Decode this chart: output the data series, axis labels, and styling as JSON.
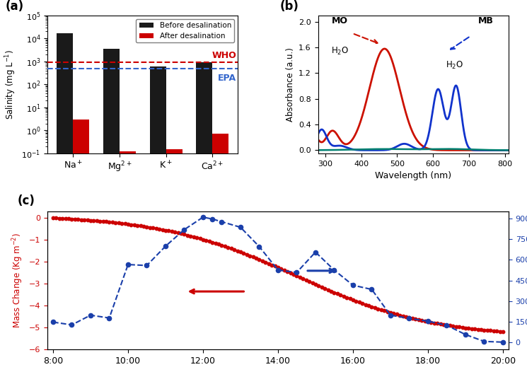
{
  "panel_a": {
    "categories": [
      "Na$^+$",
      "Mg$^{2+}$",
      "K$^+$",
      "Ca$^{2+}$"
    ],
    "before": [
      17000,
      3500,
      600,
      900
    ],
    "after": [
      3.0,
      0.12,
      0.15,
      0.7
    ],
    "who_level": 900,
    "epa_level": 500,
    "ylabel": "Salinity (mg L$^{-1}$)",
    "ylim_bottom": 0.1,
    "ylim_top": 100000.0,
    "who_label": "WHO",
    "epa_label": "EPA",
    "before_color": "#1a1a1a",
    "after_color": "#cc0000",
    "who_color": "#cc0000",
    "epa_color": "#3366cc"
  },
  "panel_b": {
    "ylabel": "Absorbance (a.u.)",
    "xlabel": "Wavelength (nm)",
    "xlim": [
      280,
      810
    ],
    "ylim": [
      -0.05,
      2.1
    ],
    "yticks": [
      0.0,
      0.4,
      0.8,
      1.2,
      1.6,
      2.0
    ],
    "xticks": [
      300,
      400,
      500,
      600,
      700,
      800
    ],
    "red_color": "#cc1100",
    "blue_color": "#1133cc",
    "teal_color": "#008070"
  },
  "panel_c": {
    "time_hours": [
      8.0,
      8.083,
      8.167,
      8.25,
      8.333,
      8.417,
      8.5,
      8.583,
      8.667,
      8.75,
      8.833,
      8.917,
      9.0,
      9.083,
      9.167,
      9.25,
      9.333,
      9.417,
      9.5,
      9.583,
      9.667,
      9.75,
      9.833,
      9.917,
      10.0,
      10.083,
      10.167,
      10.25,
      10.333,
      10.417,
      10.5,
      10.583,
      10.667,
      10.75,
      10.833,
      10.917,
      11.0,
      11.083,
      11.167,
      11.25,
      11.333,
      11.417,
      11.5,
      11.583,
      11.667,
      11.75,
      11.833,
      11.917,
      12.0,
      12.083,
      12.167,
      12.25,
      12.333,
      12.417,
      12.5,
      12.583,
      12.667,
      12.75,
      12.833,
      12.917,
      13.0,
      13.083,
      13.167,
      13.25,
      13.333,
      13.417,
      13.5,
      13.583,
      13.667,
      13.75,
      13.833,
      13.917,
      14.0,
      14.083,
      14.167,
      14.25,
      14.333,
      14.417,
      14.5,
      14.583,
      14.667,
      14.75,
      14.833,
      14.917,
      15.0,
      15.083,
      15.167,
      15.25,
      15.333,
      15.417,
      15.5,
      15.583,
      15.667,
      15.75,
      15.833,
      15.917,
      16.0,
      16.083,
      16.167,
      16.25,
      16.333,
      16.417,
      16.5,
      16.583,
      16.667,
      16.75,
      16.833,
      16.917,
      17.0,
      17.083,
      17.167,
      17.25,
      17.333,
      17.417,
      17.5,
      17.583,
      17.667,
      17.75,
      17.833,
      17.917,
      18.0,
      18.083,
      18.167,
      18.25,
      18.333,
      18.417,
      18.5,
      18.583,
      18.667,
      18.75,
      18.833,
      18.917,
      19.0,
      19.083,
      19.167,
      19.25,
      19.333,
      19.417,
      19.5,
      19.583,
      19.667,
      19.75,
      19.833,
      19.917,
      20.0
    ],
    "solar_time": [
      8.0,
      8.5,
      9.0,
      9.5,
      10.0,
      10.5,
      11.0,
      11.5,
      12.0,
      12.25,
      12.5,
      13.0,
      13.5,
      14.0,
      14.5,
      15.0,
      15.5,
      16.0,
      16.5,
      17.0,
      17.5,
      18.0,
      18.5,
      19.0,
      19.5,
      20.0
    ],
    "solar_flux": [
      148,
      128,
      198,
      178,
      565,
      558,
      698,
      818,
      908,
      895,
      875,
      835,
      695,
      525,
      508,
      655,
      525,
      415,
      385,
      198,
      175,
      155,
      125,
      58,
      8,
      3
    ],
    "ylabel_left": "Mass Change (Kg m$^{-2}$)",
    "ylabel_right": "Solar flux (W m$^{-2}$)",
    "ylim_left": [
      -6,
      0.3
    ],
    "ylim_right": [
      -50,
      950
    ],
    "yticks_left": [
      0,
      -1,
      -2,
      -3,
      -4,
      -5,
      -6
    ],
    "yticks_right": [
      0,
      150,
      300,
      450,
      600,
      750,
      900
    ],
    "red_color": "#cc0000",
    "blue_color": "#1a3faa"
  }
}
